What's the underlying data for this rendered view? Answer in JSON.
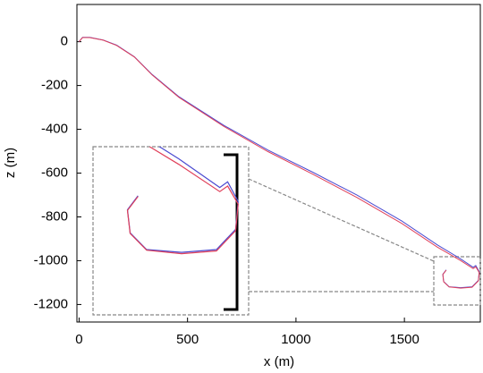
{
  "chart_data": {
    "type": "line",
    "x_label": "x (m)",
    "y_label": "z (m)",
    "x": [
      0,
      16,
      49,
      111,
      173,
      255,
      337,
      460,
      666,
      871,
      1077,
      1282,
      1488,
      1652,
      1755,
      1817,
      1829,
      1845,
      1841,
      1812,
      1759,
      1706,
      1681,
      1677,
      1693
    ],
    "series": [
      {
        "name": "blue",
        "color": "#4a4ad0",
        "values": [
          0,
          20,
          20,
          8,
          -16,
          -69,
          -150,
          -251,
          -381,
          -495,
          -596,
          -701,
          -819,
          -928,
          -989,
          -1030,
          -1022,
          -1050,
          -1090,
          -1119,
          -1123,
          -1119,
          -1095,
          -1062,
          -1042
        ]
      },
      {
        "name": "red",
        "color": "#e0405a",
        "values": [
          0,
          19,
          19,
          7,
          -17,
          -70,
          -152,
          -254,
          -386,
          -502,
          -605,
          -712,
          -830,
          -938,
          -997,
          -1036,
          -1028,
          -1054,
          -1092,
          -1121,
          -1125,
          -1120,
          -1096,
          -1063,
          -1043
        ]
      }
    ],
    "xlim": [
      -10,
      1850
    ],
    "ylim": [
      -1280,
      170
    ],
    "xticks": [
      0,
      500,
      1000,
      1500
    ],
    "yticks": [
      0,
      -200,
      -400,
      -600,
      -800,
      -1000,
      -1200
    ]
  }
}
